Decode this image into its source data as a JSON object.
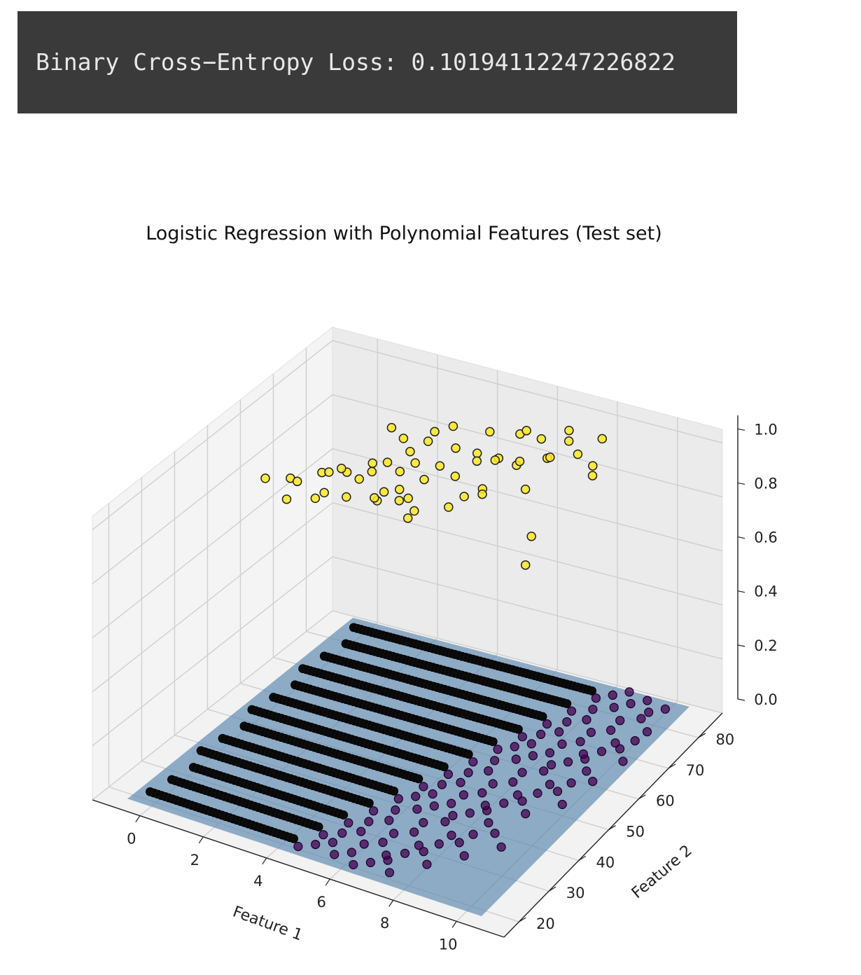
{
  "output": {
    "text": "Binary Cross−Entropy Loss: 0.10194112247226822"
  },
  "chart_data": {
    "type": "scatter3d",
    "title": "Logistic Regression with Polynomial Features (Test set)",
    "xlabel": "Feature 1",
    "ylabel": "Feature 2",
    "zlabel": "",
    "x_ticks": [
      0,
      2,
      4,
      6,
      8,
      10
    ],
    "y_ticks": [
      20,
      30,
      40,
      50,
      60,
      70,
      80
    ],
    "z_ticks": [
      "0.0",
      "0.2",
      "0.4",
      "0.6",
      "0.8",
      "1.0"
    ],
    "xlim": [
      -1.5,
      11.5
    ],
    "ylim": [
      15,
      88
    ],
    "zlim": [
      0,
      1.05
    ],
    "grid": true,
    "colors": {
      "class_0": "#440154",
      "class_1": "#fde725",
      "surface": "#5a86ad"
    },
    "series": [
      {
        "name": "",
        "z": 1,
        "points": [
          [
            1.0,
            44
          ],
          [
            1.5,
            47
          ],
          [
            2.0,
            52
          ],
          [
            2.5,
            55
          ],
          [
            3.0,
            58
          ],
          [
            3.0,
            50
          ],
          [
            3.5,
            62
          ],
          [
            2.5,
            63
          ],
          [
            1.8,
            60
          ],
          [
            3.2,
            66
          ],
          [
            3.8,
            68
          ],
          [
            4.0,
            62
          ],
          [
            4.5,
            70
          ],
          [
            4.5,
            60
          ],
          [
            5.0,
            72
          ],
          [
            5.0,
            65
          ],
          [
            5.5,
            74
          ],
          [
            5.5,
            58
          ],
          [
            6.0,
            76
          ],
          [
            6.0,
            68
          ],
          [
            6.5,
            78
          ],
          [
            6.5,
            70
          ],
          [
            7.0,
            75
          ],
          [
            7.0,
            82
          ],
          [
            7.5,
            80
          ],
          [
            4.2,
            55
          ],
          [
            3.5,
            57
          ],
          [
            2.8,
            45
          ],
          [
            2.0,
            41
          ],
          [
            4.8,
            52
          ],
          [
            5.2,
            50
          ],
          [
            6.2,
            62
          ],
          [
            7.2,
            66
          ],
          [
            8.5,
            55
          ],
          [
            9.0,
            48
          ],
          [
            3.0,
            70
          ],
          [
            2.6,
            68
          ],
          [
            4.0,
            74
          ],
          [
            3.6,
            72
          ],
          [
            5.8,
            80
          ],
          [
            6.8,
            84
          ],
          [
            7.8,
            85
          ],
          [
            8.2,
            78
          ],
          [
            1.2,
            52
          ],
          [
            1.6,
            58
          ],
          [
            5.5,
            45
          ],
          [
            4.2,
            48
          ],
          [
            3.3,
            60
          ],
          [
            4.6,
            64
          ],
          [
            5.3,
            69
          ],
          [
            6.3,
            73
          ],
          [
            2.2,
            48
          ],
          [
            3.9,
            58
          ],
          [
            5.6,
            62
          ],
          [
            7.4,
            72
          ],
          [
            6.6,
            58
          ],
          [
            8.8,
            72
          ],
          [
            4.9,
            77
          ],
          [
            2.9,
            55
          ],
          [
            3.7,
            52
          ]
        ]
      },
      {
        "name": "",
        "z": 0,
        "points": []
      }
    ]
  }
}
